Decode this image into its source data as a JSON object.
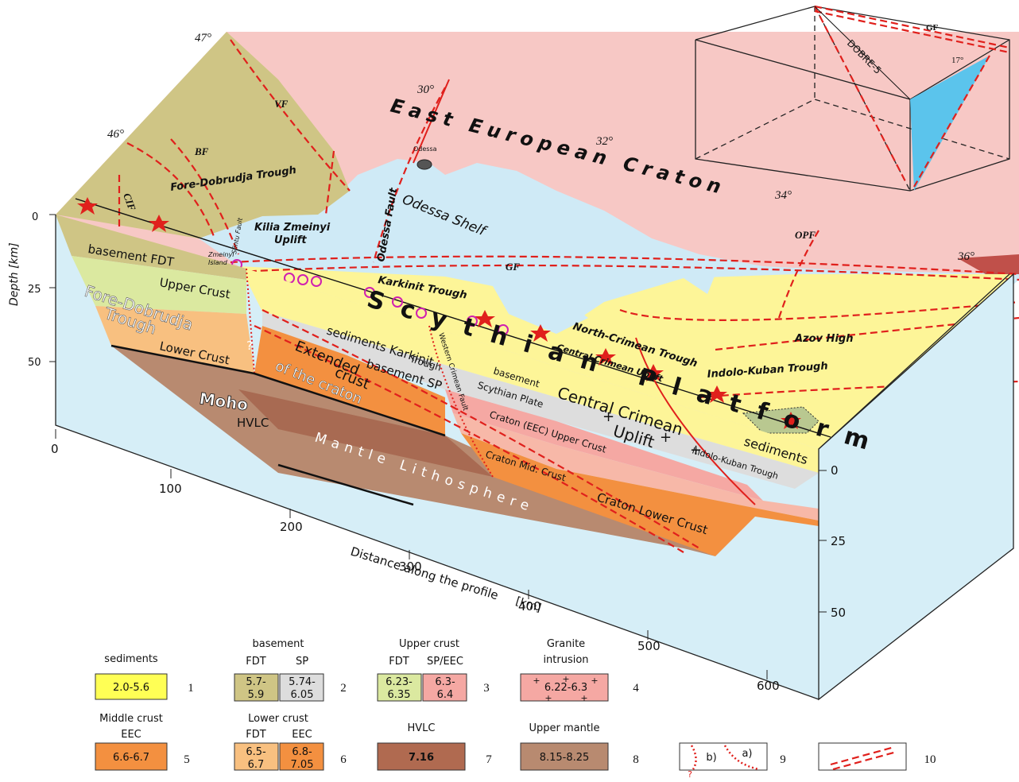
{
  "inset": {
    "fault": "GF",
    "profile": "DOBRE-5",
    "angle": "17°"
  },
  "map": {
    "latitudes": [
      "47°",
      "46°"
    ],
    "longitudes": [
      "30°",
      "32°",
      "34°",
      "36°"
    ],
    "craton": "East European Craton",
    "city": "Odessa",
    "shelf": "Odessa Shelf",
    "faults": {
      "odessa": "Odessa Fault",
      "vf": "VF",
      "bf": "BF",
      "cif": "CIF",
      "sfintu": "Sfintu Fault",
      "gf": "GF",
      "opf": "OPF"
    },
    "units": {
      "fore_dobrudja": "Fore-Dobrudja Trough",
      "kilia": [
        "Kilia Zmeinyi",
        "Uplift"
      ],
      "island": [
        "Zmeinyi",
        "Island"
      ],
      "karkinit": "Karkinit Trough",
      "platform": "Scythian Platform",
      "north_crimean": "North-Crimean Trough",
      "central_crimean": "Central Crimean Uplift",
      "azov": "Azov High",
      "indolo": "Indolo-Kuban Trough"
    }
  },
  "section": {
    "basement_fdt": "basement FDT",
    "upper_crust": "Upper Crust",
    "fore_dobrudja": [
      "Fore-Dobrudja",
      "Trough"
    ],
    "lower_crust": "Lower Crust",
    "moho": "Moho",
    "question": "?",
    "extended": [
      "Extended",
      "crust",
      "of the craton"
    ],
    "hvlc": "HVLC",
    "mantle": "Mantle Lithosphere",
    "karkinit": [
      "sediments Karkinit",
      "Trough"
    ],
    "basement_sp": "basement  SP",
    "basement_scythian": [
      "basement",
      "Scythian Plate"
    ],
    "central_crimean": [
      "Central Crimean",
      "Uplift"
    ],
    "western_fault": "Western Crimean Fault",
    "craton_upper": "Craton (EEC) Upper Crust",
    "craton_mid": "Craton Mid. Crust",
    "craton_lower": "Craton Lower Crust",
    "sediments_ik": [
      "sediments",
      "Indolo-Kuban Trough"
    ],
    "plus": "+"
  },
  "axes": {
    "depth_title": "Depth  [km]",
    "depth_ticks": [
      "0",
      "25",
      "50"
    ],
    "distance_title": [
      "Distance along the profile",
      "[km]"
    ],
    "distance_ticks": [
      "0",
      "100",
      "200",
      "300",
      "400",
      "500",
      "600"
    ],
    "right_ticks": [
      "0",
      "25",
      "50"
    ]
  },
  "legend": [
    {
      "title": [
        "sediments"
      ],
      "values": [
        [
          "2.0-5.6"
        ]
      ],
      "number": "1"
    },
    {
      "title": [
        "basement"
      ],
      "sub": [
        "FDT",
        "SP"
      ],
      "values": [
        [
          "5.7-",
          "5.9"
        ],
        [
          "5.74-",
          "6.05"
        ]
      ],
      "number": "2"
    },
    {
      "title": [
        "Upper crust"
      ],
      "sub": [
        "FDT",
        "SP/EEC"
      ],
      "values": [
        [
          "6.23-",
          "6.35"
        ],
        [
          "6.3-",
          "6.4"
        ]
      ],
      "number": "3"
    },
    {
      "title": [
        "Granite",
        "intrusion"
      ],
      "values": [
        [
          "6.22-6.3"
        ]
      ],
      "number": "4"
    },
    {
      "title": [
        "Middle crust",
        "EEC"
      ],
      "values": [
        [
          "6.6-6.7"
        ]
      ],
      "number": "5"
    },
    {
      "title": [
        "Lower crust"
      ],
      "sub": [
        "FDT",
        "EEC"
      ],
      "values": [
        [
          "6.5-",
          "6.7"
        ],
        [
          "6.8-",
          "7.05"
        ]
      ],
      "number": "6"
    },
    {
      "title": [
        "HVLC"
      ],
      "values": [
        [
          "7.16"
        ]
      ],
      "number": "7"
    },
    {
      "title": [
        "Upper mantle"
      ],
      "values": [
        [
          "8.15-8.25"
        ]
      ],
      "number": "8"
    },
    {
      "marks": [
        "b)",
        "a)",
        "?"
      ],
      "number": "9"
    },
    {
      "number": "10"
    }
  ]
}
